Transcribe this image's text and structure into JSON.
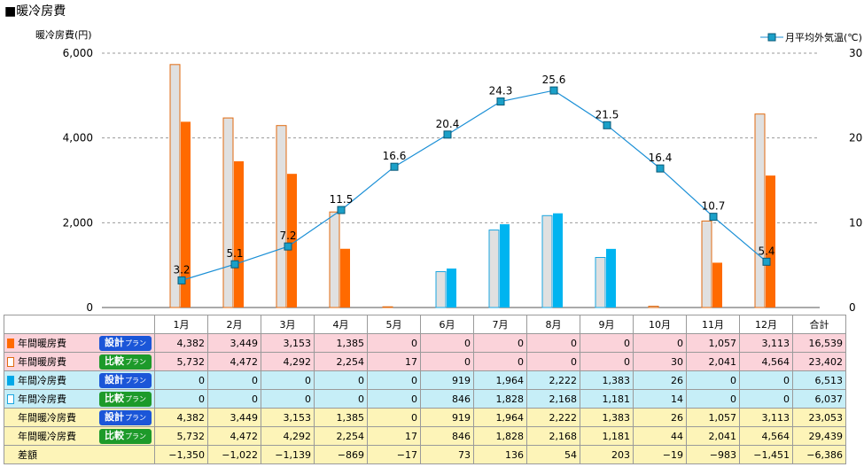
{
  "title": "■暖冷房費",
  "chart_data": {
    "type": "bar+line",
    "y_left_label": "暖冷房費(円)",
    "y_right_label": "月平均外気温(℃)",
    "y_left_ticks": [
      "6,000",
      "4,000",
      "2,000",
      "0"
    ],
    "y_right_ticks": [
      "30",
      "20",
      "10",
      "0"
    ],
    "y_left_lim": [
      0,
      6000
    ],
    "y_right_lim": [
      0,
      30
    ],
    "categories": [
      "1月",
      "2月",
      "3月",
      "4月",
      "5月",
      "6月",
      "7月",
      "8月",
      "9月",
      "10月",
      "11月",
      "12月"
    ],
    "series": [
      {
        "name": "年間暖房費 比較プラン",
        "type": "bar",
        "color": "#e0e0e0",
        "border": "#e06a10",
        "values": [
          5732,
          4472,
          4292,
          2254,
          17,
          0,
          0,
          0,
          0,
          30,
          2041,
          4564
        ]
      },
      {
        "name": "年間暖房費 設計プラン",
        "type": "bar",
        "color": "#ff6a00",
        "values": [
          4382,
          3449,
          3153,
          1385,
          0,
          0,
          0,
          0,
          0,
          0,
          1057,
          3113
        ]
      },
      {
        "name": "年間冷房費 比較プラン",
        "type": "bar",
        "color": "#e0e0e0",
        "border": "#1aa6e0",
        "values": [
          0,
          0,
          0,
          0,
          0,
          846,
          1828,
          2168,
          1181,
          14,
          0,
          0
        ]
      },
      {
        "name": "年間冷房費 設計プラン",
        "type": "bar",
        "color": "#00b4f0",
        "values": [
          0,
          0,
          0,
          0,
          0,
          919,
          1964,
          2222,
          1383,
          26,
          0,
          0
        ]
      },
      {
        "name": "月平均外気温(℃)",
        "type": "line",
        "color": "#1a8fd6",
        "values": [
          3.2,
          5.1,
          7.2,
          11.5,
          16.6,
          20.4,
          24.3,
          25.6,
          21.5,
          16.4,
          10.7,
          5.4
        ],
        "labels": [
          "3.2",
          "5.1",
          "7.2",
          "11.5",
          "16.6",
          "20.4",
          "24.3",
          "25.6",
          "21.5",
          "16.4",
          "10.7",
          "5.4"
        ]
      }
    ],
    "grid": true,
    "legend": "top-right"
  },
  "table": {
    "columns": [
      "1月",
      "2月",
      "3月",
      "4月",
      "5月",
      "6月",
      "7月",
      "8月",
      "9月",
      "10月",
      "11月",
      "12月",
      "合計"
    ],
    "rows": [
      {
        "label": "年間暖房費",
        "plan": "設計",
        "plan_suffix": "プラン",
        "badge": "blue",
        "swatch": "solid-orange",
        "cls": "heat",
        "values": [
          "4,382",
          "3,449",
          "3,153",
          "1,385",
          "0",
          "0",
          "0",
          "0",
          "0",
          "0",
          "1,057",
          "3,113",
          "16,539"
        ]
      },
      {
        "label": "年間暖房費",
        "plan": "比較",
        "plan_suffix": "プラン",
        "badge": "green",
        "swatch": "outline-orange",
        "cls": "heat",
        "values": [
          "5,732",
          "4,472",
          "4,292",
          "2,254",
          "17",
          "0",
          "0",
          "0",
          "0",
          "30",
          "2,041",
          "4,564",
          "23,402"
        ]
      },
      {
        "label": "年間冷房費",
        "plan": "設計",
        "plan_suffix": "プラン",
        "badge": "blue",
        "swatch": "solid-blue",
        "cls": "cool",
        "values": [
          "0",
          "0",
          "0",
          "0",
          "0",
          "919",
          "1,964",
          "2,222",
          "1,383",
          "26",
          "0",
          "0",
          "6,513"
        ]
      },
      {
        "label": "年間冷房費",
        "plan": "比較",
        "plan_suffix": "プラン",
        "badge": "green",
        "swatch": "outline-blue",
        "cls": "cool",
        "values": [
          "0",
          "0",
          "0",
          "0",
          "0",
          "846",
          "1,828",
          "2,168",
          "1,181",
          "14",
          "0",
          "0",
          "6,037"
        ]
      },
      {
        "label": "年間暖冷房費",
        "plan": "設計",
        "plan_suffix": "プラン",
        "badge": "blue",
        "swatch": "",
        "cls": "tot",
        "values": [
          "4,382",
          "3,449",
          "3,153",
          "1,385",
          "0",
          "919",
          "1,964",
          "2,222",
          "1,383",
          "26",
          "1,057",
          "3,113",
          "23,053"
        ]
      },
      {
        "label": "年間暖冷房費",
        "plan": "比較",
        "plan_suffix": "プラン",
        "badge": "green",
        "swatch": "",
        "cls": "tot",
        "values": [
          "5,732",
          "4,472",
          "4,292",
          "2,254",
          "17",
          "846",
          "1,828",
          "2,168",
          "1,181",
          "44",
          "2,041",
          "4,564",
          "29,439"
        ]
      },
      {
        "label": "差額",
        "plan": "",
        "plan_suffix": "",
        "badge": "",
        "swatch": "",
        "cls": "diff",
        "values": [
          "−1,350",
          "−1,022",
          "−1,139",
          "−869",
          "−17",
          "73",
          "136",
          "54",
          "203",
          "−19",
          "−983",
          "−1,451",
          "−6,386"
        ]
      }
    ]
  }
}
